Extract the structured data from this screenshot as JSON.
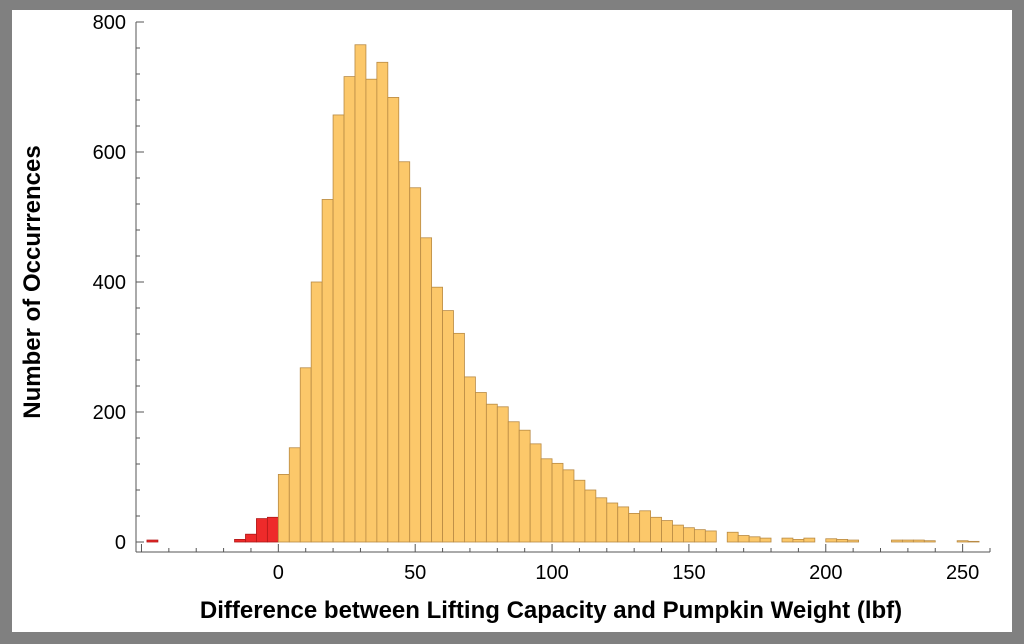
{
  "chart_data": {
    "type": "bar",
    "title": "",
    "xlabel": "Difference between Lifting Capacity and Pumpkin Weight (lbf)",
    "ylabel": "Number of Occurrences",
    "xlim": [
      -52,
      260
    ],
    "ylim": [
      0,
      800
    ],
    "bin_width": 4,
    "x_ticks": [
      0,
      50,
      100,
      150,
      200,
      250
    ],
    "y_ticks": [
      0,
      200,
      400,
      600,
      800
    ],
    "colors": {
      "negative": "#ee2a2a",
      "positive": "#fcc86a",
      "edge": "#b88a44"
    },
    "series": [
      {
        "bin_starts": [
          -48,
          -16,
          -12,
          -8,
          -4,
          0,
          4,
          8,
          12,
          16,
          20,
          24,
          28,
          32,
          36,
          40,
          44,
          48,
          52,
          56,
          60,
          64,
          68,
          72,
          76,
          80,
          84,
          88,
          92,
          96,
          100,
          104,
          108,
          112,
          116,
          120,
          124,
          128,
          132,
          136,
          140,
          144,
          148,
          152,
          156,
          164,
          168,
          172,
          176,
          184,
          188,
          192,
          200,
          204,
          208,
          224,
          228,
          232,
          236,
          248,
          252
        ],
        "values": [
          3,
          4,
          12,
          36,
          38,
          104,
          145,
          268,
          400,
          527,
          657,
          716,
          765,
          712,
          738,
          684,
          585,
          545,
          468,
          392,
          356,
          321,
          254,
          230,
          212,
          208,
          185,
          172,
          151,
          128,
          121,
          111,
          95,
          80,
          68,
          60,
          54,
          44,
          48,
          38,
          33,
          26,
          22,
          19,
          17,
          15,
          10,
          8,
          6,
          6,
          4,
          6,
          5,
          4,
          3,
          3,
          3,
          3,
          2,
          2,
          1
        ]
      }
    ]
  }
}
